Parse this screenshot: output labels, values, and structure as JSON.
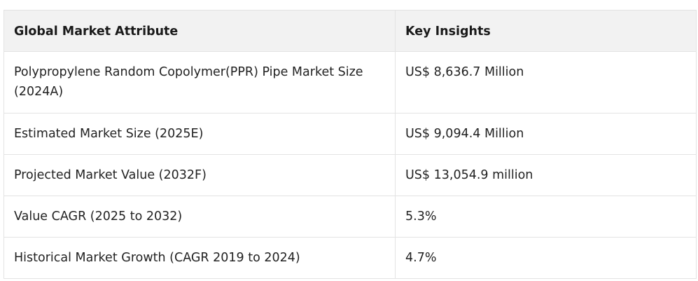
{
  "table": {
    "headers": [
      "Global Market Attribute",
      "Key Insights"
    ],
    "rows": [
      [
        "Polypropylene Random Copolymer(PPR) Pipe Market Size (2024A)",
        "US$ 8,636.7 Million"
      ],
      [
        "Estimated Market Size (2025E)",
        "US$ 9,094.4 Million"
      ],
      [
        "Projected Market Value (2032F)",
        "US$ 13,054.9 million"
      ],
      [
        "Value CAGR (2025 to 2032)",
        "5.3%"
      ],
      [
        "Historical Market Growth (CAGR 2019 to 2024)",
        "4.7%"
      ]
    ]
  },
  "colors": {
    "header_background": "#f2f2f2",
    "border": "#e3e3e3",
    "text": "#222222"
  }
}
